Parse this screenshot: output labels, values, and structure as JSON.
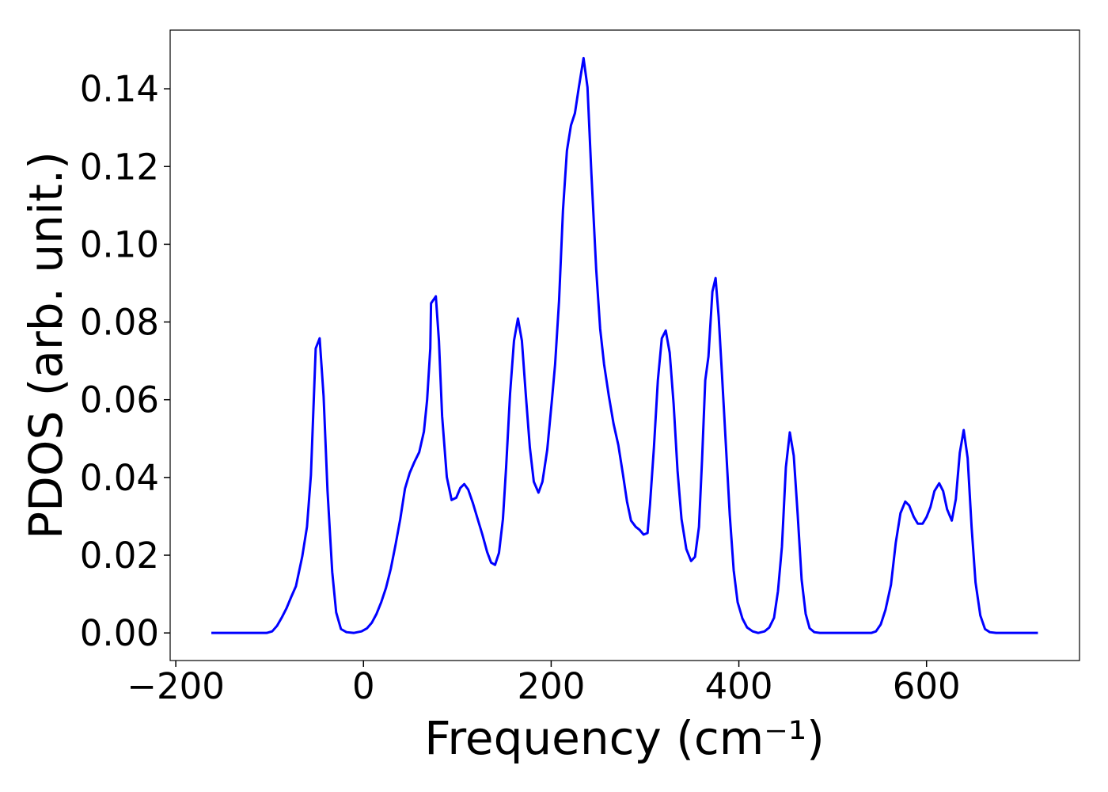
{
  "chart_data": {
    "type": "line",
    "xlabel": "Frequency (cm⁻¹)",
    "ylabel": "PDOS (arb. unit.)",
    "xlim": [
      -206,
      763
    ],
    "ylim": [
      -0.0071,
      0.1551
    ],
    "xticks": [
      {
        "value": -200,
        "label": "−200"
      },
      0,
      200,
      400,
      600
    ],
    "yticks": [
      {
        "value": 0,
        "label": "0.00"
      },
      {
        "value": 0.02,
        "label": "0.02"
      },
      {
        "value": 0.04,
        "label": "0.04"
      },
      {
        "value": 0.06,
        "label": "0.06"
      },
      {
        "value": 0.08,
        "label": "0.08"
      },
      {
        "value": 0.1,
        "label": "0.10"
      },
      {
        "value": 0.12,
        "label": "0.12"
      },
      {
        "value": 0.14,
        "label": "0.14"
      }
    ],
    "grid": false,
    "series": [
      {
        "color": "#0000ff",
        "x": [
          -162.1,
          -103.2,
          -97.3,
          -92.2,
          -87.2,
          -82.1,
          -77.1,
          -72.0,
          -65.3,
          -60.2,
          -56.0,
          -50.9,
          -46.7,
          -42.5,
          -38.3,
          -33.3,
          -29.1,
          -24.0,
          -18.1,
          -10.5,
          -2.1,
          3.8,
          8.8,
          13.9,
          18.9,
          24.0,
          29.1,
          34.1,
          39.2,
          44.2,
          49.3,
          54.3,
          59.4,
          64.4,
          67.8,
          71.2,
          72.0,
          77.1,
          80.4,
          83.8,
          88.8,
          93.9,
          98.9,
          103.2,
          107.4,
          111.6,
          116.6,
          121.7,
          126.7,
          131.8,
          136.0,
          140.2,
          144.4,
          148.6,
          152.0,
          156.2,
          160.4,
          164.6,
          168.8,
          173.1,
          177.3,
          181.5,
          186.5,
          190.7,
          195.8,
          200.8,
          204.2,
          208.4,
          212.6,
          216.8,
          221.1,
          225.3,
          229.5,
          234.5,
          238.7,
          242.9,
          248.0,
          252.2,
          256.4,
          261.5,
          266.5,
          271.6,
          276.6,
          280.8,
          285.1,
          290.1,
          294.3,
          298.5,
          302.7,
          305.3,
          309.5,
          313.7,
          317.9,
          322.1,
          326.3,
          330.5,
          334.7,
          338.9,
          344.0,
          349.1,
          353.3,
          357.5,
          360.8,
          364.2,
          367.6,
          371.8,
          375.2,
          378.5,
          381.9,
          386.1,
          390.3,
          394.5,
          398.7,
          403.8,
          408.8,
          414.7,
          420.6,
          427.4,
          432.4,
          437.5,
          441.7,
          445.9,
          450.1,
          454.3,
          458.5,
          462.7,
          466.9,
          471.2,
          475.4,
          480.4,
          486.3,
          541.1,
          546.1,
          551.2,
          556.2,
          562.1,
          567.2,
          572.2,
          577.3,
          581.5,
          586.5,
          590.7,
          595.8,
          600.0,
          604.2,
          608.4,
          613.5,
          617.7,
          621.9,
          626.9,
          631.2,
          635.4,
          639.6,
          643.8,
          648.0,
          652.2,
          657.3,
          662.3,
          667.4,
          674.1,
          718.7
        ],
        "values": [
          0,
          0,
          0.0004,
          0.0018,
          0.0039,
          0.0063,
          0.0092,
          0.012,
          0.0196,
          0.0273,
          0.0406,
          0.0732,
          0.0758,
          0.0609,
          0.0365,
          0.0157,
          0.0053,
          0.001,
          0.0002,
          0,
          0.0004,
          0.0012,
          0.0026,
          0.0049,
          0.0079,
          0.0116,
          0.0165,
          0.0226,
          0.0293,
          0.0371,
          0.0412,
          0.044,
          0.0465,
          0.0518,
          0.0599,
          0.0732,
          0.0848,
          0.0866,
          0.0752,
          0.0558,
          0.0401,
          0.0342,
          0.0348,
          0.0373,
          0.0383,
          0.0369,
          0.0334,
          0.0293,
          0.0253,
          0.0208,
          0.0181,
          0.0175,
          0.0206,
          0.0293,
          0.0426,
          0.0615,
          0.0752,
          0.0809,
          0.0752,
          0.0609,
          0.0477,
          0.0389,
          0.0361,
          0.0389,
          0.0471,
          0.0599,
          0.0691,
          0.0854,
          0.1088,
          0.1241,
          0.1306,
          0.1337,
          0.1404,
          0.1479,
          0.1404,
          0.118,
          0.0935,
          0.0783,
          0.0691,
          0.0609,
          0.0538,
          0.0483,
          0.0406,
          0.0338,
          0.0289,
          0.0273,
          0.0265,
          0.0253,
          0.0257,
          0.033,
          0.0477,
          0.065,
          0.0758,
          0.0778,
          0.0721,
          0.0589,
          0.0416,
          0.0293,
          0.0216,
          0.0185,
          0.0196,
          0.0273,
          0.0446,
          0.065,
          0.0711,
          0.0878,
          0.0913,
          0.0813,
          0.067,
          0.0487,
          0.0304,
          0.0161,
          0.0079,
          0.0037,
          0.0014,
          0.0004,
          0,
          0.0004,
          0.0014,
          0.0039,
          0.0108,
          0.0222,
          0.0426,
          0.0516,
          0.0456,
          0.0304,
          0.0137,
          0.0049,
          0.0012,
          0.0002,
          0,
          0,
          0.0004,
          0.0022,
          0.0059,
          0.0124,
          0.0232,
          0.0308,
          0.0338,
          0.0328,
          0.0298,
          0.0281,
          0.0281,
          0.0298,
          0.0324,
          0.0365,
          0.0385,
          0.0365,
          0.0318,
          0.0289,
          0.0344,
          0.0463,
          0.0522,
          0.045,
          0.0273,
          0.013,
          0.0045,
          0.001,
          0.0002,
          0,
          0
        ]
      }
    ]
  }
}
